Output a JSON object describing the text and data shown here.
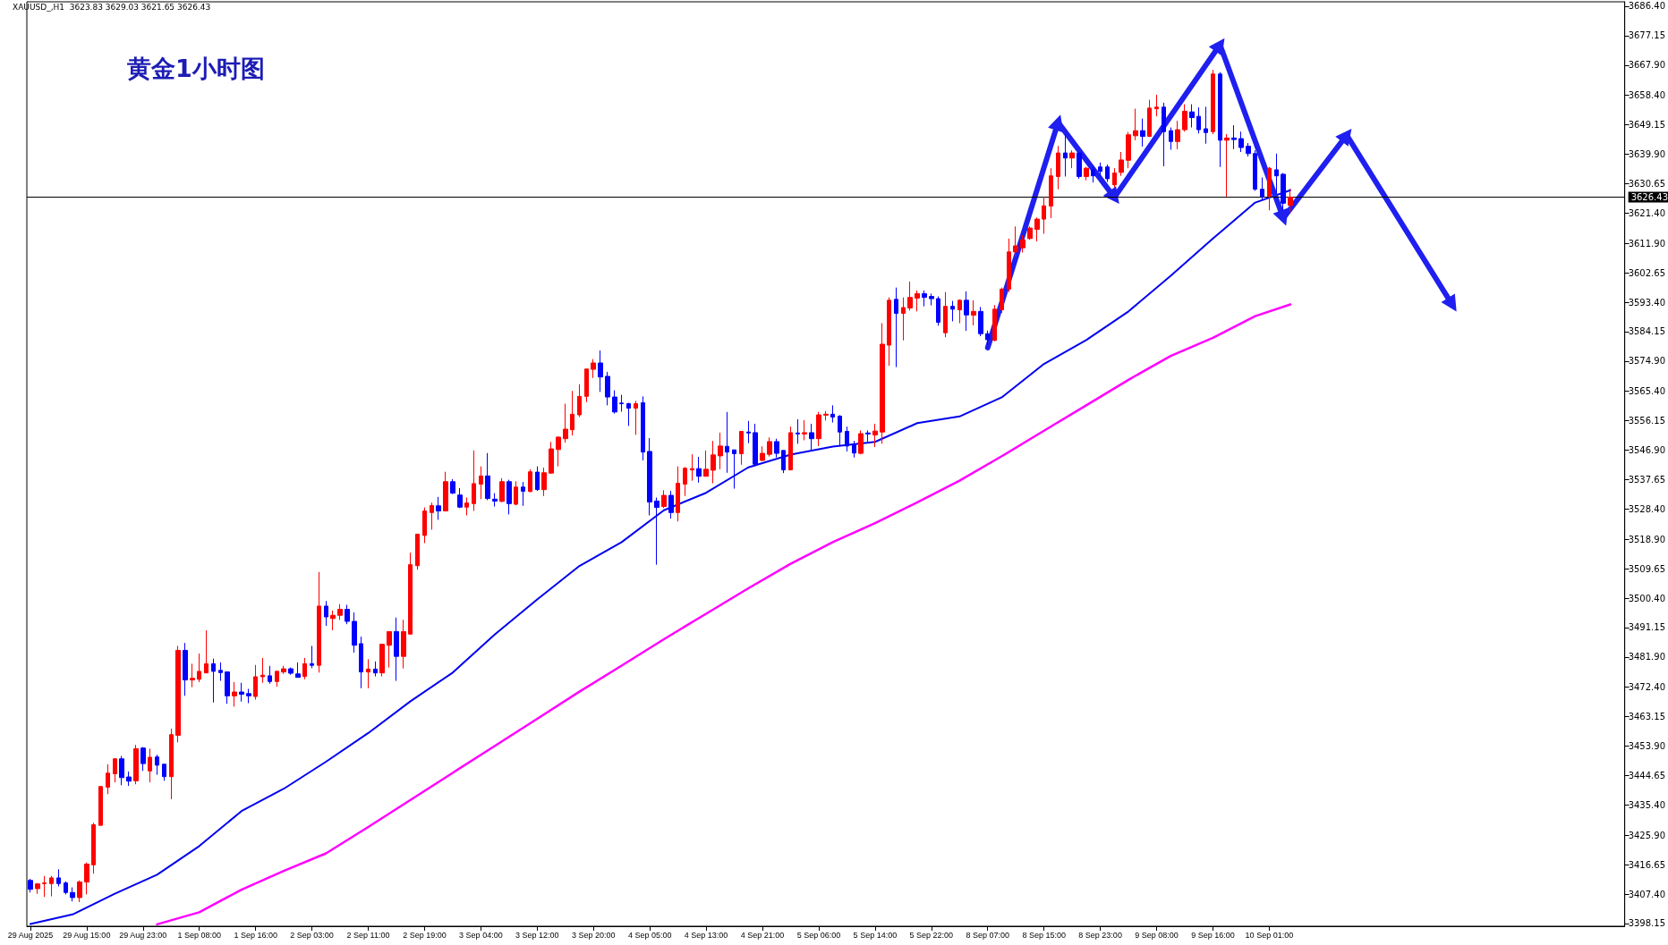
{
  "chart_data": {
    "type": "candlestick",
    "title": "黄金1小时图",
    "annotations": [
      "XAUUSD_,H1  3623.83 3629.03 3621.65 3626.43"
    ],
    "categories": [
      "29 Aug 2025",
      null,
      null,
      null,
      null,
      null,
      null,
      null,
      "29 Aug 15:00",
      null,
      null,
      null,
      null,
      null,
      null,
      null,
      "29 Aug 23:00",
      null,
      null,
      null,
      null,
      null,
      null,
      null,
      "1 Sep 08:00",
      null,
      null,
      null,
      null,
      null,
      null,
      null,
      "1 Sep 16:00",
      null,
      null,
      null,
      null,
      null,
      null,
      null,
      "2 Sep 03:00",
      null,
      null,
      null,
      null,
      null,
      null,
      null,
      "2 Sep 11:00",
      null,
      null,
      null,
      null,
      null,
      null,
      null,
      "2 Sep 19:00",
      null,
      null,
      null,
      null,
      null,
      null,
      null,
      "3 Sep 04:00",
      null,
      null,
      null,
      null,
      null,
      null,
      null,
      "3 Sep 12:00",
      null,
      null,
      null,
      null,
      null,
      null,
      null,
      "3 Sep 20:00",
      null,
      null,
      null,
      null,
      null,
      null,
      null,
      "4 Sep 05:00",
      null,
      null,
      null,
      null,
      null,
      null,
      null,
      "4 Sep 13:00",
      null,
      null,
      null,
      null,
      null,
      null,
      null,
      "4 Sep 21:00",
      null,
      null,
      null,
      null,
      null,
      null,
      null,
      "5 Sep 06:00",
      null,
      null,
      null,
      null,
      null,
      null,
      null,
      "5 Sep 14:00",
      null,
      null,
      null,
      null,
      null,
      null,
      null,
      "5 Sep 22:00",
      null,
      null,
      null,
      null,
      null,
      null,
      null,
      "8 Sep 07:00",
      null,
      null,
      null,
      null,
      null,
      null,
      null,
      "8 Sep 15:00",
      null,
      null,
      null,
      null,
      null,
      null,
      null,
      "8 Sep 23:00",
      null,
      null,
      null,
      null,
      null,
      null,
      null,
      "9 Sep 08:00",
      null,
      null,
      null,
      null,
      null,
      null,
      null,
      "9 Sep 16:00",
      null,
      null,
      null,
      null,
      null,
      null,
      null,
      "10 Sep 01:00",
      null,
      null,
      null,
      null,
      null,
      null,
      null,
      null,
      null,
      null,
      null,
      null,
      null,
      null,
      null,
      null,
      null,
      null,
      null,
      null,
      null,
      null,
      null,
      null,
      null,
      null,
      null,
      null,
      null,
      null,
      null,
      null,
      null,
      null,
      null,
      null,
      null,
      null,
      null,
      null,
      null,
      null,
      null,
      null,
      null,
      null,
      null,
      null,
      null,
      null
    ],
    "ohlc": [
      [
        3411.7,
        3412.2,
        3407.9,
        3408.9
      ],
      [
        3409.1,
        3410.9,
        3407.5,
        3410.6
      ],
      [
        3410.7,
        3413.1,
        3406.5,
        3410.9
      ],
      [
        3410.7,
        3413.1,
        3406.7,
        3412.5
      ],
      [
        3412.5,
        3415.2,
        3409.8,
        3410.7
      ],
      [
        3410.9,
        3411.4,
        3407.3,
        3407.9
      ],
      [
        3407.9,
        3409.5,
        3405.1,
        3406.3
      ],
      [
        3406.3,
        3411.7,
        3404.9,
        3411.2
      ],
      [
        3411.2,
        3417.3,
        3407.3,
        3416.8
      ],
      [
        3416.6,
        3429.8,
        3413.8,
        3429.2
      ],
      [
        3429.0,
        3441.2,
        3429.0,
        3441.2
      ],
      [
        3441.0,
        3448.2,
        3438.8,
        3445.4
      ],
      [
        3445.2,
        3450.1,
        3442.5,
        3449.9
      ],
      [
        3449.9,
        3450.8,
        3441.6,
        3444.0
      ],
      [
        3444.2,
        3445.9,
        3441.4,
        3442.9
      ],
      [
        3443.0,
        3454.3,
        3441.9,
        3453.1
      ],
      [
        3453.3,
        3453.6,
        3446.1,
        3448.4
      ],
      [
        3446.1,
        3453.1,
        3442.5,
        3450.4
      ],
      [
        3450.5,
        3451.2,
        3444.9,
        3447.9
      ],
      [
        3448.2,
        3448.2,
        3443.0,
        3444.3
      ],
      [
        3444.3,
        3459.4,
        3437.2,
        3457.5
      ],
      [
        3457.3,
        3485.4,
        3455.1,
        3484.0
      ],
      [
        3484.0,
        3486.3,
        3469.7,
        3474.7
      ],
      [
        3474.7,
        3479.8,
        3472.4,
        3475.2
      ],
      [
        3474.9,
        3483.0,
        3474.0,
        3477.4
      ],
      [
        3476.9,
        3490.3,
        3476.8,
        3479.8
      ],
      [
        3479.8,
        3481.4,
        3467.6,
        3477.4
      ],
      [
        3477.7,
        3480.2,
        3474.4,
        3477.0
      ],
      [
        3477.2,
        3477.4,
        3467.2,
        3469.7
      ],
      [
        3469.7,
        3474.0,
        3466.3,
        3470.9
      ],
      [
        3470.9,
        3473.8,
        3467.9,
        3470.2
      ],
      [
        3470.4,
        3471.9,
        3467.4,
        3469.7
      ],
      [
        3469.5,
        3479.4,
        3468.5,
        3475.7
      ],
      [
        3475.7,
        3481.6,
        3473.8,
        3476.2
      ],
      [
        3476.0,
        3479.1,
        3473.5,
        3474.2
      ],
      [
        3474.2,
        3477.7,
        3472.6,
        3477.4
      ],
      [
        3477.2,
        3479.1,
        3476.6,
        3478.2
      ],
      [
        3478.2,
        3478.6,
        3476.3,
        3476.8
      ],
      [
        3476.6,
        3480.2,
        3475.4,
        3475.5
      ],
      [
        3475.8,
        3481.6,
        3474.9,
        3479.8
      ],
      [
        3479.8,
        3485.4,
        3478.4,
        3479.3
      ],
      [
        3479.3,
        3508.6,
        3477.0,
        3497.9
      ],
      [
        3497.9,
        3499.5,
        3491.7,
        3494.5
      ],
      [
        3494.0,
        3496.5,
        3490.3,
        3495.0
      ],
      [
        3495.0,
        3498.5,
        3493.6,
        3496.9
      ],
      [
        3496.9,
        3498.3,
        3492.2,
        3493.1
      ],
      [
        3493.1,
        3495.9,
        3483.3,
        3485.6
      ],
      [
        3486.1,
        3488.3,
        3472.1,
        3477.2
      ],
      [
        3477.2,
        3481.2,
        3472.1,
        3478.1
      ],
      [
        3478.1,
        3480.5,
        3475.8,
        3476.9
      ],
      [
        3476.9,
        3486.1,
        3475.8,
        3485.9
      ],
      [
        3485.6,
        3489.9,
        3478.6,
        3489.9
      ],
      [
        3489.9,
        3494.3,
        3474.4,
        3482.1
      ],
      [
        3482.1,
        3493.6,
        3478.3,
        3489.9
      ],
      [
        3489.1,
        3514.7,
        3489.0,
        3510.9
      ],
      [
        3510.6,
        3520.5,
        3509.3,
        3520.5
      ],
      [
        3520.1,
        3528.9,
        3517.7,
        3527.8
      ],
      [
        3527.3,
        3530.4,
        3521.9,
        3529.5
      ],
      [
        3529.4,
        3532.2,
        3525.0,
        3527.8
      ],
      [
        3527.8,
        3540.1,
        3527.8,
        3537.0
      ],
      [
        3537.0,
        3537.8,
        3533.1,
        3533.4
      ],
      [
        3532.8,
        3535.0,
        3528.7,
        3529.0
      ],
      [
        3529.0,
        3532.0,
        3526.4,
        3530.3
      ],
      [
        3530.1,
        3546.8,
        3527.8,
        3536.4
      ],
      [
        3536.2,
        3541.8,
        3531.5,
        3538.8
      ],
      [
        3538.8,
        3546.0,
        3531.2,
        3531.7
      ],
      [
        3531.5,
        3533.4,
        3529.2,
        3530.9
      ],
      [
        3530.8,
        3538.1,
        3530.6,
        3537.0
      ],
      [
        3537.0,
        3537.6,
        3526.7,
        3530.1
      ],
      [
        3529.9,
        3537.1,
        3529.6,
        3535.3
      ],
      [
        3535.3,
        3536.9,
        3529.4,
        3534.0
      ],
      [
        3533.9,
        3540.9,
        3533.7,
        3540.1
      ],
      [
        3540.0,
        3541.8,
        3534.1,
        3534.5
      ],
      [
        3534.5,
        3541.4,
        3532.5,
        3539.8
      ],
      [
        3539.7,
        3549.5,
        3539.5,
        3547.3
      ],
      [
        3547.1,
        3551.2,
        3541.8,
        3551.0
      ],
      [
        3550.5,
        3561.5,
        3549.3,
        3553.5
      ],
      [
        3553.3,
        3565.5,
        3551.5,
        3558.2
      ],
      [
        3558.0,
        3567.6,
        3557.3,
        3563.8
      ],
      [
        3563.8,
        3572.4,
        3562.0,
        3572.4
      ],
      [
        3572.3,
        3575.5,
        3569.6,
        3574.3
      ],
      [
        3574.3,
        3578.2,
        3565.2,
        3569.9
      ],
      [
        3570.1,
        3571.5,
        3561.0,
        3563.6
      ],
      [
        3563.6,
        3565.7,
        3558.4,
        3558.9
      ],
      [
        3561.7,
        3564.3,
        3559.0,
        3561.5
      ],
      [
        3561.5,
        3561.8,
        3554.5,
        3560.1
      ],
      [
        3560.1,
        3562.4,
        3551.7,
        3561.5
      ],
      [
        3561.8,
        3563.8,
        3543.7,
        3546.3
      ],
      [
        3546.5,
        3550.7,
        3526.4,
        3530.6
      ],
      [
        3530.9,
        3532.0,
        3510.9,
        3528.9
      ],
      [
        3529.2,
        3534.3,
        3528.7,
        3532.7
      ],
      [
        3532.7,
        3534.1,
        3525.4,
        3527.3
      ],
      [
        3527.3,
        3541.8,
        3524.5,
        3536.5
      ],
      [
        3536.2,
        3541.6,
        3532.5,
        3541.2
      ],
      [
        3540.7,
        3545.6,
        3537.3,
        3541.1
      ],
      [
        3541.1,
        3544.8,
        3536.7,
        3538.7
      ],
      [
        3538.7,
        3546.8,
        3538.6,
        3540.9
      ],
      [
        3540.6,
        3549.8,
        3536.5,
        3545.4
      ],
      [
        3545.1,
        3552.4,
        3540.9,
        3548.2
      ],
      [
        3548.1,
        3558.9,
        3539.8,
        3546.3
      ],
      [
        3547.0,
        3547.0,
        3534.8,
        3545.8
      ],
      [
        3545.8,
        3552.8,
        3542.3,
        3552.8
      ],
      [
        3552.6,
        3556.1,
        3549.1,
        3552.3
      ],
      [
        3552.4,
        3555.2,
        3541.8,
        3542.5
      ],
      [
        3543.7,
        3548.1,
        3543.4,
        3545.9
      ],
      [
        3545.6,
        3550.9,
        3544.9,
        3549.6
      ],
      [
        3549.6,
        3550.5,
        3544.6,
        3545.9
      ],
      [
        3546.8,
        3546.8,
        3539.7,
        3540.7
      ],
      [
        3540.7,
        3554.3,
        3540.7,
        3552.4
      ],
      [
        3552.3,
        3556.6,
        3548.9,
        3552.0
      ],
      [
        3552.0,
        3556.3,
        3550.0,
        3552.4
      ],
      [
        3552.4,
        3555.2,
        3546.8,
        3550.5
      ],
      [
        3550.5,
        3558.9,
        3548.2,
        3558.0
      ],
      [
        3557.9,
        3559.2,
        3556.2,
        3558.2
      ],
      [
        3558.2,
        3561.0,
        3555.6,
        3557.3
      ],
      [
        3557.6,
        3557.9,
        3548.1,
        3552.6
      ],
      [
        3552.8,
        3554.3,
        3546.5,
        3548.2
      ],
      [
        3548.7,
        3549.8,
        3544.6,
        3546.0
      ],
      [
        3545.9,
        3553.1,
        3545.6,
        3552.1
      ],
      [
        3552.3,
        3553.1,
        3549.6,
        3552.0
      ],
      [
        3551.7,
        3555.2,
        3547.9,
        3552.9
      ],
      [
        3552.6,
        3586.8,
        3548.9,
        3580.2
      ],
      [
        3579.9,
        3594.9,
        3573.4,
        3594.0
      ],
      [
        3594.3,
        3598.0,
        3573.0,
        3589.9
      ],
      [
        3589.9,
        3594.9,
        3581.4,
        3591.7
      ],
      [
        3591.6,
        3599.9,
        3590.8,
        3594.9
      ],
      [
        3594.7,
        3597.1,
        3590.5,
        3596.1
      ],
      [
        3596.1,
        3597.1,
        3592.1,
        3594.9
      ],
      [
        3595.2,
        3596.1,
        3592.4,
        3594.5
      ],
      [
        3594.5,
        3595.2,
        3586.0,
        3587.1
      ],
      [
        3583.8,
        3596.6,
        3582.4,
        3592.1
      ],
      [
        3592.1,
        3593.8,
        3587.4,
        3591.2
      ],
      [
        3591.0,
        3594.3,
        3586.8,
        3594.0
      ],
      [
        3594.0,
        3596.8,
        3584.4,
        3589.4
      ],
      [
        3589.3,
        3594.0,
        3586.1,
        3590.5
      ],
      [
        3590.5,
        3591.9,
        3582.7,
        3583.5
      ],
      [
        3583.5,
        3584.5,
        3580.0,
        3581.6
      ],
      [
        3581.4,
        3592.5,
        3581.1,
        3591.2
      ],
      [
        3591.0,
        3598.0,
        3590.0,
        3597.5
      ],
      [
        3597.5,
        3613.4,
        3596.6,
        3609.2
      ],
      [
        3609.2,
        3617.2,
        3607.8,
        3611.1
      ],
      [
        3610.5,
        3614.5,
        3609.0,
        3613.0
      ],
      [
        3613.4,
        3617.2,
        3613.0,
        3616.7
      ],
      [
        3616.3,
        3620.0,
        3612.5,
        3619.5
      ],
      [
        3619.5,
        3626.6,
        3614.9,
        3623.7
      ],
      [
        3623.6,
        3635.5,
        3619.8,
        3633.1
      ],
      [
        3632.9,
        3642.5,
        3628.9,
        3640.3
      ],
      [
        3640.3,
        3646.2,
        3632.9,
        3638.7
      ],
      [
        3638.7,
        3641.1,
        3635.5,
        3640.3
      ],
      [
        3640.3,
        3640.6,
        3632.2,
        3632.9
      ],
      [
        3632.9,
        3635.9,
        3631.7,
        3635.5
      ],
      [
        3635.0,
        3636.0,
        3631.0,
        3633.1
      ],
      [
        3635.9,
        3637.3,
        3633.1,
        3634.5
      ],
      [
        3635.9,
        3636.7,
        3631.2,
        3632.2
      ],
      [
        3630.3,
        3635.5,
        3629.5,
        3634.0
      ],
      [
        3634.2,
        3640.6,
        3633.1,
        3638.1
      ],
      [
        3638.0,
        3646.9,
        3635.5,
        3646.0
      ],
      [
        3645.7,
        3654.2,
        3644.3,
        3647.3
      ],
      [
        3647.3,
        3651.1,
        3642.3,
        3645.5
      ],
      [
        3645.5,
        3657.0,
        3645.3,
        3654.4
      ],
      [
        3654.2,
        3658.6,
        3651.8,
        3654.7
      ],
      [
        3654.7,
        3656.1,
        3636.1,
        3647.0
      ],
      [
        3647.3,
        3648.3,
        3641.3,
        3643.9
      ],
      [
        3643.9,
        3650.4,
        3641.5,
        3647.6
      ],
      [
        3647.6,
        3655.6,
        3647.0,
        3653.4
      ],
      [
        3653.2,
        3655.6,
        3648.3,
        3651.4
      ],
      [
        3651.8,
        3654.6,
        3646.4,
        3647.6
      ],
      [
        3647.9,
        3654.8,
        3643.2,
        3646.7
      ],
      [
        3647.0,
        3666.4,
        3646.2,
        3665.1
      ],
      [
        3665.1,
        3665.7,
        3635.9,
        3644.3
      ],
      [
        3644.3,
        3646.2,
        3626.6,
        3645.0
      ],
      [
        3645.0,
        3649.0,
        3641.5,
        3644.5
      ],
      [
        3644.8,
        3647.0,
        3640.6,
        3642.0
      ],
      [
        3642.4,
        3643.4,
        3639.2,
        3640.1
      ],
      [
        3640.1,
        3641.1,
        3628.4,
        3628.9
      ],
      [
        3628.9,
        3632.6,
        3625.6,
        3626.6
      ],
      [
        3626.6,
        3635.9,
        3622.3,
        3635.5
      ],
      [
        3635.0,
        3640.1,
        3627.5,
        3633.1
      ],
      [
        3633.6,
        3634.0,
        3622.3,
        3624.5
      ],
      [
        3623.83,
        3629.03,
        3621.65,
        3626.43
      ],
      null,
      null,
      null,
      null,
      null,
      null,
      null,
      null,
      null,
      null,
      null,
      null,
      null,
      null,
      null,
      null,
      null,
      null,
      null,
      null,
      null,
      null,
      null,
      null,
      null,
      null,
      null,
      null,
      null,
      null,
      null,
      null,
      null,
      null,
      null,
      null,
      null,
      null,
      null,
      null,
      null,
      null,
      null,
      null,
      null,
      null,
      null
    ],
    "series": [
      {
        "type": "line",
        "color": "#0000ee",
        "values": [
          3398.0,
          null,
          null,
          null,
          null,
          null,
          3401.0,
          null,
          null,
          null,
          null,
          null,
          3407.5,
          null,
          null,
          null,
          null,
          null,
          3413.5,
          null,
          null,
          null,
          null,
          null,
          3422.5,
          null,
          null,
          null,
          null,
          null,
          3433.5,
          null,
          null,
          null,
          null,
          null,
          3440.5,
          null,
          null,
          null,
          null,
          null,
          3449.0,
          null,
          null,
          null,
          null,
          null,
          3458.0,
          null,
          null,
          null,
          null,
          null,
          3468.0,
          null,
          null,
          null,
          null,
          null,
          3477.0,
          null,
          null,
          null,
          null,
          null,
          3489.0,
          null,
          null,
          null,
          null,
          null,
          3500.0,
          null,
          null,
          null,
          null,
          null,
          3510.5,
          null,
          null,
          null,
          null,
          null,
          3518.0,
          null,
          null,
          null,
          null,
          null,
          3528.0,
          null,
          null,
          null,
          null,
          null,
          3533.5,
          null,
          null,
          null,
          null,
          null,
          3541.5,
          null,
          null,
          null,
          null,
          null,
          3545.5,
          null,
          null,
          null,
          null,
          null,
          3548.0,
          null,
          null,
          null,
          null,
          null,
          3549.5,
          null,
          null,
          null,
          null,
          null,
          3555.4,
          null,
          null,
          null,
          null,
          null,
          3557.5,
          null,
          null,
          null,
          null,
          null,
          3563.5,
          null,
          null,
          null,
          null,
          null,
          3574.0,
          null,
          null,
          null,
          null,
          null,
          3581.5,
          null,
          null,
          null,
          null,
          null,
          3590.5,
          null,
          null,
          null,
          null,
          null,
          3601.7,
          null,
          null,
          null,
          null,
          null,
          3613.4,
          null,
          null,
          null,
          null,
          null,
          3624.7,
          null,
          null,
          null,
          null,
          3628.6,
          null,
          null,
          null,
          null,
          null,
          null,
          null,
          null,
          null,
          null,
          null,
          null,
          null,
          null,
          null,
          null,
          null,
          null,
          null,
          null,
          null,
          null,
          null,
          null,
          null,
          null,
          null,
          null,
          null,
          null,
          null,
          null,
          null,
          null,
          null,
          null,
          null,
          null,
          null,
          null,
          null,
          null,
          null,
          null,
          null,
          null,
          null
        ]
      },
      {
        "type": "line",
        "color": "#ff00ff",
        "values": [
          null,
          null,
          null,
          null,
          null,
          null,
          null,
          null,
          null,
          null,
          null,
          null,
          null,
          null,
          null,
          null,
          null,
          null,
          3397.9,
          null,
          null,
          null,
          null,
          null,
          3401.7,
          null,
          null,
          null,
          null,
          null,
          3408.8,
          null,
          null,
          null,
          null,
          null,
          3414.7,
          null,
          null,
          null,
          null,
          null,
          3420.2,
          null,
          null,
          null,
          null,
          null,
          3428.5,
          null,
          null,
          null,
          null,
          null,
          3437.0,
          null,
          null,
          null,
          null,
          null,
          3445.5,
          null,
          null,
          null,
          null,
          null,
          3454.0,
          null,
          null,
          null,
          null,
          null,
          3462.5,
          null,
          null,
          null,
          null,
          null,
          3471.0,
          null,
          null,
          null,
          null,
          null,
          3479.2,
          null,
          null,
          null,
          null,
          null,
          3487.5,
          null,
          null,
          null,
          null,
          null,
          3495.5,
          null,
          null,
          null,
          null,
          null,
          3503.5,
          null,
          null,
          null,
          null,
          null,
          3511.2,
          null,
          null,
          null,
          null,
          null,
          3518.0,
          null,
          null,
          null,
          null,
          null,
          3524.0,
          null,
          null,
          null,
          null,
          null,
          3530.5,
          null,
          null,
          null,
          null,
          null,
          3537.3,
          null,
          null,
          null,
          null,
          null,
          3545.0,
          null,
          null,
          null,
          null,
          null,
          3553.0,
          null,
          null,
          null,
          null,
          null,
          3561.0,
          null,
          null,
          null,
          null,
          null,
          3569.0,
          null,
          null,
          null,
          null,
          null,
          3576.5,
          null,
          null,
          null,
          null,
          null,
          3582.2,
          null,
          null,
          null,
          null,
          null,
          3589.0,
          null,
          null,
          null,
          null,
          3592.7,
          null,
          null,
          null,
          null,
          null,
          null,
          null,
          null,
          null,
          null,
          null,
          null,
          null,
          null,
          null,
          null,
          null,
          null,
          null,
          null,
          null,
          null,
          null,
          null,
          null,
          null,
          null,
          null,
          null,
          null,
          null,
          null,
          null,
          null,
          null,
          null,
          null,
          null,
          null,
          null,
          null,
          null,
          null,
          null,
          null,
          null,
          null
        ]
      },
      {
        "type": "line",
        "color": "#1f1ff0",
        "marker": "triangle",
        "values": [
          null,
          null,
          null,
          null,
          null,
          null,
          null,
          null,
          null,
          null,
          null,
          null,
          null,
          null,
          null,
          null,
          null,
          null,
          null,
          null,
          null,
          null,
          null,
          null,
          null,
          null,
          null,
          null,
          null,
          null,
          null,
          null,
          null,
          null,
          null,
          null,
          null,
          null,
          null,
          null,
          null,
          null,
          null,
          null,
          null,
          null,
          null,
          null,
          null,
          null,
          null,
          null,
          null,
          null,
          null,
          null,
          null,
          null,
          null,
          null,
          null,
          null,
          null,
          null,
          null,
          null,
          null,
          null,
          null,
          null,
          null,
          null,
          null,
          null,
          null,
          null,
          null,
          null,
          null,
          null,
          null,
          null,
          null,
          null,
          null,
          null,
          null,
          null,
          null,
          null,
          null,
          null,
          null,
          null,
          null,
          null,
          null,
          null,
          null,
          null,
          null,
          null,
          null,
          null,
          null,
          null,
          null,
          null,
          null,
          null,
          null,
          null,
          null,
          null,
          null,
          null,
          null,
          null,
          null,
          null,
          null,
          null,
          null,
          null,
          null,
          null,
          null,
          null,
          null,
          null,
          null,
          null,
          null,
          null,
          null,
          null,
          3579.1,
          null,
          null,
          null,
          null,
          null,
          null,
          null,
          null,
          null,
          3649.9,
          null,
          null,
          null,
          null,
          null,
          null,
          null,
          3626.3,
          null,
          null,
          null,
          null,
          null,
          null,
          null,
          null,
          null,
          null,
          null,
          null,
          null,
          null,
          3674.3,
          null,
          null,
          null,
          null,
          null,
          null,
          null,
          null,
          3619.8,
          null,
          null,
          null,
          null,
          null,
          null,
          null,
          null,
          3645.9,
          null,
          null,
          null,
          null,
          null,
          null,
          null,
          null,
          null,
          null,
          null,
          null,
          null,
          null,
          3592.6,
          null,
          null,
          null,
          null,
          null,
          null,
          null,
          null,
          null,
          null,
          null,
          null,
          null,
          null,
          null,
          null,
          null,
          null,
          null,
          null,
          null,
          null,
          null,
          null
        ]
      }
    ],
    "ylim": [
      3397.3,
      3687.8
    ],
    "yticks": [
      {
        "value": 3686.4,
        "label": "3686.40"
      },
      {
        "value": 3677.15,
        "label": "3677.15"
      },
      {
        "value": 3667.9,
        "label": "3667.90"
      },
      {
        "value": 3658.4,
        "label": "3658.40"
      },
      {
        "value": 3649.15,
        "label": "3649.15"
      },
      {
        "value": 3639.9,
        "label": "3639.90"
      },
      {
        "value": 3630.65,
        "label": "3630.65"
      },
      {
        "value": 3621.4,
        "label": "3621.40"
      },
      {
        "value": 3611.9,
        "label": "3611.90"
      },
      {
        "value": 3602.65,
        "label": "3602.65"
      },
      {
        "value": 3593.4,
        "label": "3593.40"
      },
      {
        "value": 3584.15,
        "label": "3584.15"
      },
      {
        "value": 3574.9,
        "label": "3574.90"
      },
      {
        "value": 3565.4,
        "label": "3565.40"
      },
      {
        "value": 3556.15,
        "label": "3556.15"
      },
      {
        "value": 3546.9,
        "label": "3546.90"
      },
      {
        "value": 3537.65,
        "label": "3537.65"
      },
      {
        "value": 3528.4,
        "label": "3528.40"
      },
      {
        "value": 3518.9,
        "label": "3518.90"
      },
      {
        "value": 3509.65,
        "label": "3509.65"
      },
      {
        "value": 3500.4,
        "label": "3500.40"
      },
      {
        "value": 3491.15,
        "label": "3491.15"
      },
      {
        "value": 3481.9,
        "label": "3481.90"
      },
      {
        "value": 3472.4,
        "label": "3472.40"
      },
      {
        "value": 3463.15,
        "label": "3463.15"
      },
      {
        "value": 3453.9,
        "label": "3453.90"
      },
      {
        "value": 3444.65,
        "label": "3444.65"
      },
      {
        "value": 3435.4,
        "label": "3435.40"
      },
      {
        "value": 3425.9,
        "label": "3425.90"
      },
      {
        "value": 3416.65,
        "label": "3416.65"
      },
      {
        "value": 3407.4,
        "label": "3407.40"
      },
      {
        "value": 3398.15,
        "label": "3398.15"
      }
    ],
    "ref_lines": [
      {
        "axis": "y",
        "value": 3626.43,
        "label": "3626.43",
        "color": "#000000"
      }
    ],
    "grid": false
  }
}
